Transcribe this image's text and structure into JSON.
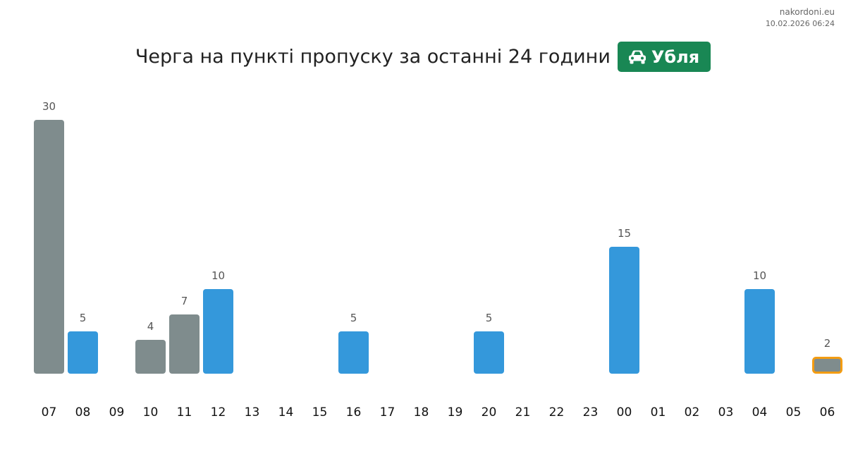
{
  "brand": {
    "site": "nakordoni.eu",
    "datetime": "10.02.2026 06:24"
  },
  "header": {
    "title": "Черга на пункті пропуску за останні 24 години",
    "badge_label": "Убля",
    "badge_icon": "car-icon",
    "badge_color": "#198754"
  },
  "colors": {
    "gray": "#7f8c8d",
    "blue": "#3498db",
    "highlight_border": "#f39c12"
  },
  "chart_data": {
    "type": "bar",
    "title": "Черга на пункті пропуску за останні 24 години",
    "xlabel": "",
    "ylabel": "",
    "categories": [
      "07",
      "08",
      "09",
      "10",
      "11",
      "12",
      "13",
      "14",
      "15",
      "16",
      "17",
      "18",
      "19",
      "20",
      "21",
      "22",
      "23",
      "00",
      "01",
      "02",
      "03",
      "04",
      "05",
      "06"
    ],
    "values": [
      30,
      5,
      0,
      4,
      7,
      10,
      0,
      0,
      0,
      5,
      0,
      0,
      0,
      5,
      0,
      0,
      0,
      15,
      0,
      0,
      0,
      10,
      0,
      2
    ],
    "bar_colors": [
      "gray",
      "blue",
      "gray",
      "gray",
      "gray",
      "blue",
      "gray",
      "gray",
      "gray",
      "blue",
      "gray",
      "gray",
      "gray",
      "blue",
      "gray",
      "gray",
      "gray",
      "blue",
      "gray",
      "gray",
      "gray",
      "blue",
      "gray",
      "gray"
    ],
    "highlighted_category": "06",
    "ylim": [
      0,
      30
    ],
    "grid": false,
    "legend": "none"
  }
}
